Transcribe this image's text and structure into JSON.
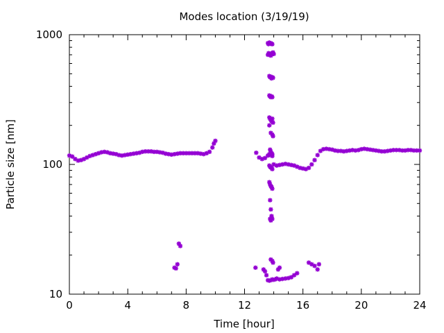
{
  "chart_data": {
    "type": "scatter",
    "title": "Modes location (3/19/19)",
    "xlabel": "Time [hour]",
    "ylabel": "Particle size [nm]",
    "xlim": [
      0,
      24
    ],
    "ylim": [
      10,
      1000
    ],
    "yscale": "log",
    "grid": false,
    "legend": "none",
    "xticks": [
      0,
      4,
      8,
      12,
      16,
      20,
      24
    ],
    "xtick_labels": [
      "0",
      "4",
      "8",
      "12",
      "16",
      "20",
      "24"
    ],
    "yticks": [
      10,
      100,
      1000
    ],
    "ytick_labels": [
      "10",
      "100",
      "1000"
    ],
    "color": "#9400d3",
    "series": [
      {
        "x": [
          0.0,
          0.2,
          0.4,
          0.6,
          0.8,
          1.0,
          1.2,
          1.4,
          1.6,
          1.8,
          2.0,
          2.2,
          2.4,
          2.6,
          2.8,
          3.0,
          3.2,
          3.4,
          3.6,
          3.8,
          4.0,
          4.2,
          4.4,
          4.6,
          4.8,
          5.0,
          5.2,
          5.4,
          5.6,
          5.8,
          6.0,
          6.2,
          6.4,
          6.6,
          6.8,
          7.0,
          7.2,
          7.4,
          7.6,
          7.8,
          8.0,
          8.2,
          8.4,
          8.6,
          8.8,
          9.0,
          9.2,
          9.4,
          9.6,
          9.8,
          9.9,
          10.0,
          12.8,
          13.0,
          13.2,
          13.4,
          13.6,
          13.7,
          13.8,
          13.9,
          14.0,
          14.2,
          14.4,
          14.6,
          14.8,
          15.0,
          15.2,
          15.4,
          15.6,
          15.8,
          16.0,
          16.2,
          16.4,
          16.6,
          16.8,
          17.0,
          17.2,
          17.4,
          17.6,
          17.8,
          18.0,
          18.2,
          18.4,
          18.6,
          18.8,
          19.0,
          19.2,
          19.4,
          19.6,
          19.8,
          20.0,
          20.2,
          20.4,
          20.6,
          20.8,
          21.0,
          21.2,
          21.4,
          21.6,
          21.8,
          22.0,
          22.2,
          22.4,
          22.6,
          22.8,
          23.0,
          23.2,
          23.4,
          23.6,
          23.8,
          24.0
        ],
        "y": [
          117,
          115,
          110,
          107,
          108,
          110,
          113,
          116,
          118,
          120,
          122,
          124,
          125,
          124,
          122,
          121,
          120,
          118,
          117,
          118,
          119,
          120,
          121,
          122,
          123,
          125,
          126,
          126,
          126,
          125,
          125,
          124,
          123,
          121,
          120,
          119,
          120,
          121,
          122,
          122,
          122,
          122,
          122,
          122,
          122,
          121,
          120,
          122,
          125,
          135,
          145,
          152,
          123,
          113,
          110,
          112,
          117,
          120,
          118,
          116,
          100,
          98,
          99,
          100,
          101,
          100,
          99,
          98,
          96,
          94,
          93,
          92,
          94,
          100,
          108,
          118,
          127,
          131,
          132,
          131,
          130,
          128,
          127,
          127,
          126,
          127,
          128,
          129,
          128,
          129,
          131,
          132,
          131,
          130,
          129,
          128,
          127,
          126,
          126,
          127,
          128,
          129,
          129,
          129,
          128,
          128,
          129,
          129,
          128,
          128,
          128
        ]
      },
      {
        "x": [
          7.2,
          7.3,
          7.4,
          7.5,
          7.6
        ],
        "y": [
          16,
          15.8,
          17,
          24.5,
          23.5
        ]
      },
      {
        "x": [
          13.6,
          13.65,
          13.7,
          13.75,
          13.8,
          13.85,
          13.9,
          13.6,
          13.65,
          13.7,
          13.75,
          13.8,
          13.85,
          13.9,
          13.95,
          14.0,
          13.7,
          13.75,
          13.8,
          13.85,
          13.9,
          13.95,
          13.7,
          13.75,
          13.8,
          13.85,
          13.9,
          13.7,
          13.75,
          13.8,
          13.85,
          13.9,
          13.95,
          13.7,
          13.8,
          13.9,
          13.95,
          13.75,
          13.8,
          13.85,
          13.9,
          13.7,
          13.75,
          13.8,
          13.85,
          13.9,
          13.7,
          13.75,
          13.8,
          13.85,
          13.9,
          13.75,
          13.8,
          13.85,
          13.75,
          13.8,
          13.85,
          13.9,
          13.8,
          13.9,
          13.95
        ],
        "y": [
          860,
          845,
          870,
          855,
          860,
          850,
          845,
          700,
          720,
          715,
          700,
          690,
          705,
          720,
          730,
          710,
          480,
          470,
          475,
          460,
          470,
          465,
          340,
          335,
          330,
          335,
          330,
          230,
          225,
          220,
          215,
          225,
          210,
          200,
          175,
          170,
          165,
          130,
          125,
          122,
          120,
          98,
          96,
          95,
          94,
          92,
          73,
          70,
          68,
          67,
          65,
          53,
          45,
          40,
          38,
          37,
          39,
          38,
          18.5,
          18,
          17.5
        ]
      },
      {
        "x": [
          12.75,
          13.3,
          13.4,
          13.5,
          13.6,
          13.7,
          13.8,
          13.9,
          14.0,
          14.1,
          14.2,
          14.4,
          14.6,
          14.8,
          15.0,
          15.2,
          15.4,
          15.6,
          14.3,
          14.4,
          16.4,
          16.6,
          16.8,
          17.0,
          17.1
        ],
        "y": [
          16,
          15.5,
          15,
          14,
          12.8,
          12.7,
          12.8,
          13,
          12.9,
          13,
          13.2,
          13.0,
          13.1,
          13.2,
          13.3,
          13.5,
          14,
          14.5,
          15.5,
          16,
          17.5,
          17.0,
          16.5,
          15.5,
          17
        ]
      }
    ]
  }
}
